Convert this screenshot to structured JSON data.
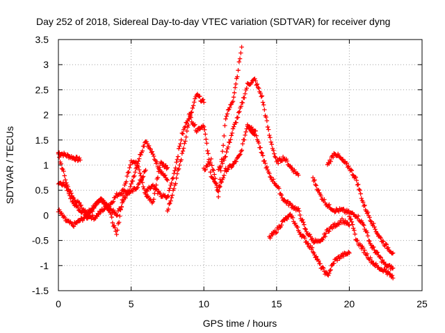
{
  "chart_data": {
    "type": "scatter",
    "title": "Day 252 of 2018, Sidereal Day-to-day VTEC variation (SDTVAR) for receiver dyng",
    "xlabel": "GPS time / hours",
    "ylabel": "SDTVAR / TECUs",
    "xlim": [
      0,
      25
    ],
    "ylim": [
      -1.5,
      3.5
    ],
    "xticks": [
      "0",
      "5",
      "10",
      "15",
      "20",
      "25"
    ],
    "yticks": [
      "-1.5",
      "-1",
      "-0.5",
      "0",
      "0.5",
      "1",
      "1.5",
      "2",
      "2.5",
      "3",
      "3.5"
    ],
    "grid": true,
    "marker": "+",
    "series_color": "#ff0000",
    "tracks": [
      {
        "x": [
          0,
          0.5,
          1.0,
          1.5
        ],
        "y": [
          1.25,
          1.2,
          1.15,
          1.1
        ]
      },
      {
        "x": [
          0,
          0.5,
          1.0,
          1.5,
          2.0,
          2.5,
          3.0,
          3.5,
          4.0,
          4.5,
          5.0,
          5.5,
          6.0,
          6.5,
          7.0,
          7.5
        ],
        "y": [
          0.65,
          0.6,
          0.25,
          0.1,
          0.05,
          0.2,
          0.3,
          0.15,
          0.0,
          0.3,
          0.6,
          1.1,
          1.5,
          1.2,
          0.9,
          0.7
        ]
      },
      {
        "x": [
          0,
          0.5,
          1.0,
          1.5,
          2.0,
          2.5,
          3.0,
          3.5,
          4.0,
          4.5,
          5.0,
          5.5,
          6.0
        ],
        "y": [
          0.1,
          -0.1,
          -0.2,
          -0.1,
          0.0,
          -0.05,
          0.1,
          0.2,
          0.4,
          0.5,
          0.45,
          0.6,
          0.9
        ]
      },
      {
        "x": [
          0,
          0.3,
          0.6,
          1.0,
          1.5,
          2.0,
          2.5,
          3.0,
          3.5,
          4.0,
          4.5,
          5.0,
          5.5,
          6.0,
          6.5,
          7.0,
          7.5
        ],
        "y": [
          1.2,
          0.9,
          0.6,
          0.35,
          0.2,
          -0.05,
          0.2,
          0.35,
          0.1,
          -0.4,
          0.5,
          1.1,
          1.0,
          0.4,
          0.25,
          1.05,
          0.95
        ]
      },
      {
        "x": [
          6.0,
          6.5,
          7.0,
          7.5,
          8.0,
          8.5,
          9.0,
          9.5,
          10.0,
          10.3,
          10.5,
          11.0,
          11.5,
          12.0,
          12.5,
          13.0,
          13.5
        ],
        "y": [
          0.5,
          0.6,
          0.4,
          0.35,
          0.9,
          1.6,
          2.0,
          1.7,
          1.8,
          1.2,
          0.8,
          0.5,
          0.9,
          1.0,
          1.2,
          1.8,
          1.6
        ]
      },
      {
        "x": [
          7.5,
          8.0,
          8.5,
          9.0,
          9.5,
          10.0
        ],
        "y": [
          0.1,
          0.6,
          1.2,
          1.9,
          2.4,
          2.25
        ]
      },
      {
        "x": [
          10.0,
          10.5,
          11.0,
          11.5,
          12.0,
          12.3,
          12.6
        ],
        "y": [
          0.9,
          1.1,
          0.4,
          1.95,
          2.3,
          2.8,
          3.35
        ]
      },
      {
        "x": [
          11.0,
          11.5,
          12.0,
          12.5,
          13.0,
          13.5,
          14.0,
          14.5,
          15.0,
          15.5,
          16.0,
          16.5
        ],
        "y": [
          0.9,
          1.2,
          1.7,
          2.1,
          2.6,
          2.7,
          2.35,
          1.6,
          1.05,
          1.15,
          0.95,
          0.8
        ]
      },
      {
        "x": [
          13.0,
          13.5,
          14.0,
          14.5,
          15.0,
          15.5,
          16.0,
          16.5,
          17.0,
          17.5,
          18.0,
          18.5,
          19.0,
          19.5,
          20.0
        ],
        "y": [
          1.8,
          1.7,
          1.2,
          0.8,
          0.6,
          0.3,
          0.2,
          0.1,
          -0.3,
          -0.5,
          -0.55,
          -0.3,
          -0.2,
          -0.1,
          -0.2
        ]
      },
      {
        "x": [
          14.5,
          15.0,
          15.5,
          16.0,
          16.5,
          17.0,
          17.5,
          18.0,
          18.5,
          19.0,
          19.5,
          20.0
        ],
        "y": [
          -0.45,
          -0.3,
          -0.1,
          0.0,
          -0.3,
          -0.5,
          -0.7,
          -1.0,
          -1.2,
          -0.9,
          -0.8,
          -0.75
        ]
      },
      {
        "x": [
          17.5,
          18.0,
          18.5,
          19.0,
          19.5,
          20.0,
          20.5,
          21.0,
          21.5,
          22.0,
          22.5,
          23.0
        ],
        "y": [
          0.75,
          0.4,
          0.2,
          0.1,
          0.1,
          0.05,
          0.0,
          -0.2,
          -0.6,
          -0.8,
          -1.0,
          -1.05
        ]
      },
      {
        "x": [
          18.5,
          19.0,
          19.5,
          20.0,
          20.5,
          21.0,
          21.5,
          22.0,
          22.5,
          23.0
        ],
        "y": [
          1.0,
          1.25,
          1.1,
          0.95,
          0.7,
          0.2,
          -0.1,
          -0.4,
          -0.6,
          -0.75
        ]
      },
      {
        "x": [
          20.0,
          20.5,
          21.0,
          21.5,
          22.0,
          22.5,
          23.0
        ],
        "y": [
          0.0,
          -0.5,
          -0.7,
          -0.9,
          -1.05,
          -1.1,
          -1.25
        ]
      }
    ]
  }
}
